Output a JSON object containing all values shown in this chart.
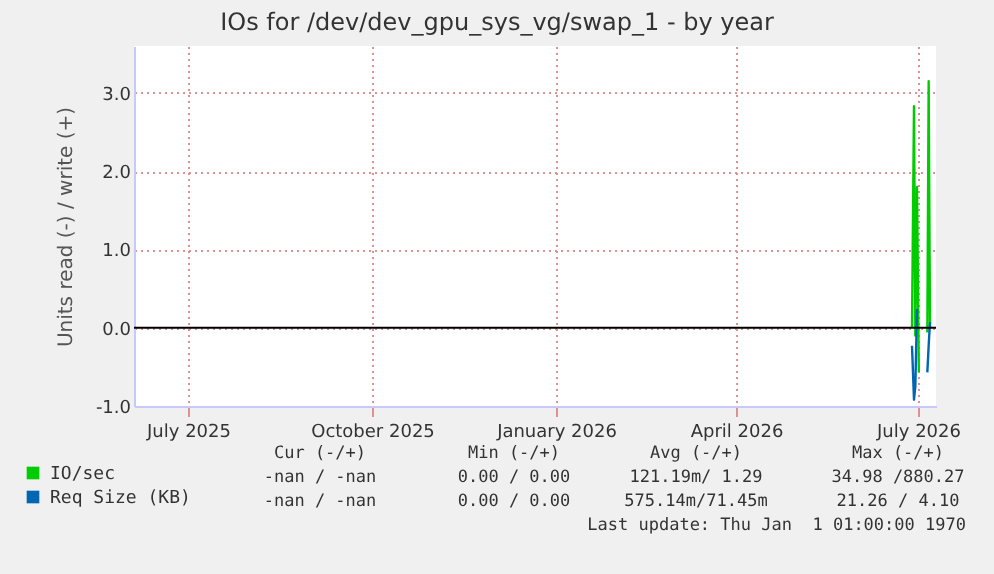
{
  "chart_data": {
    "type": "line",
    "title": "IOs for /dev/dev_gpu_sys_vg/swap_1 - by year",
    "ylabel": "Units read (-) / write (+)",
    "x": [
      "2026-06-28",
      "2026-06-29",
      "2026-06-29T16:00",
      "2026-06-30T12:00",
      "2026-07-01T10:00",
      "2026-07-03",
      "2026-07-05T16:00",
      "2026-07-06T08:00",
      "2026-07-07"
    ],
    "series": [
      {
        "name": "IO/sec",
        "color": "#00cc00",
        "values": [
          0,
          2.83,
          -0.1,
          1.8,
          -0.57,
          null,
          -0.06,
          3.15,
          0
        ]
      },
      {
        "name": "Req Size (KB)",
        "color": "#0066b3",
        "values": [
          -0.23,
          -0.92,
          -0.75,
          0.24,
          null,
          null,
          -0.57,
          -0.23,
          0.07
        ]
      }
    ],
    "xlim": [
      "2025-06-04",
      "2026-07-10"
    ],
    "xticks": [
      {
        "value": "2025-07-01",
        "label": "July 2025"
      },
      {
        "value": "2025-10-01",
        "label": "October 2025"
      },
      {
        "value": "2026-01-01",
        "label": "January 2026"
      },
      {
        "value": "2026-04-01",
        "label": "April 2026"
      },
      {
        "value": "2026-07-01",
        "label": "July 2026"
      }
    ],
    "ylim": [
      -1,
      3.6
    ],
    "yticks": [
      {
        "value": -1,
        "label": "-1.0"
      },
      {
        "value": 0,
        "label": "0.0"
      },
      {
        "value": 1,
        "label": "1.0"
      },
      {
        "value": 2,
        "label": "2.0"
      },
      {
        "value": 3,
        "label": "3.0"
      }
    ],
    "ref_lines": [
      {
        "axis": "y",
        "value": 0,
        "color": "#000000"
      }
    ],
    "grid": true,
    "legend": "bottom left",
    "annotations": [
      "Cur (-/+)",
      "Min (-/+)",
      "Avg (-/+)",
      "Max (-/+)",
      "-nan / -nan",
      "0.00 / 0.00",
      "121.19m/ 1.29",
      "34.98 /880.27",
      "-nan / -nan",
      "0.00 / 0.00",
      "575.14m/71.45m",
      "21.26 / 4.10",
      "Last update: Thu Jan  1 01:00:00 1970"
    ]
  }
}
